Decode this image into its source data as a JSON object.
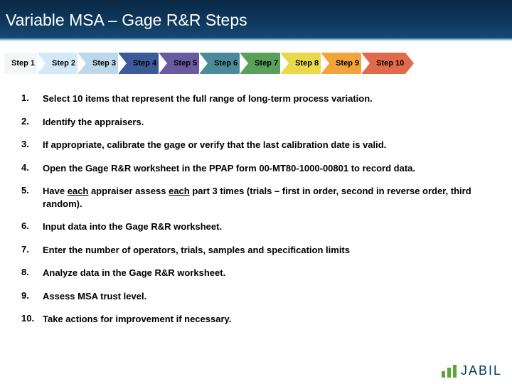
{
  "header": {
    "title": "Variable MSA – Gage R&R Steps",
    "bg_gradient": [
      "#0a2845",
      "#1a4a75"
    ],
    "title_color": "#ffffff",
    "title_fontsize": 23
  },
  "chevrons": {
    "height": 30,
    "font_size": 11,
    "items": [
      {
        "label": "Step 1",
        "bg": "#f3f5f7"
      },
      {
        "label": "Step 2",
        "bg": "#d4e9f7"
      },
      {
        "label": "Step 3",
        "bg": "#bcd8ea"
      },
      {
        "label": "Step 4",
        "bg": "#3a5a9a"
      },
      {
        "label": "Step 5",
        "bg": "#6a5aa0"
      },
      {
        "label": "Step 6",
        "bg": "#4a8a9a"
      },
      {
        "label": "Step 7",
        "bg": "#5aa05a"
      },
      {
        "label": "Step 8",
        "bg": "#e8d84a"
      },
      {
        "label": "Step 9",
        "bg": "#f2a33a"
      },
      {
        "label": "Step 10",
        "bg": "#e06a4a"
      }
    ]
  },
  "list": {
    "font_size": 13,
    "items": [
      {
        "num": "1.",
        "text": "Select 10 items that represent the full range of long-term process variation."
      },
      {
        "num": "2.",
        "text": "Identify the appraisers."
      },
      {
        "num": "3.",
        "text": "If appropriate, calibrate the gage or verify that the last calibration date is valid."
      },
      {
        "num": "4.",
        "text": "Open the Gage R&R worksheet in the PPAP form 00-MT80-1000-00801 to record data."
      },
      {
        "num": "5.",
        "text": "Have each appraiser assess each part 3 times (trials – first in order, second in reverse order, third random).",
        "underline_words": [
          "each",
          "each"
        ]
      },
      {
        "num": "6.",
        "text": "Input data into the Gage R&R worksheet."
      },
      {
        "num": "7.",
        "text": "Enter the number of operators, trials, samples and specification limits"
      },
      {
        "num": "8.",
        "text": "Analyze data in the Gage R&R worksheet."
      },
      {
        "num": "9.",
        "text": "Assess MSA trust level."
      },
      {
        "num": "10.",
        "text": "Take actions for improvement if necessary."
      }
    ]
  },
  "logo": {
    "text": "JABIL",
    "text_color": "#003a5d",
    "bar_color": "#5aa53a"
  }
}
